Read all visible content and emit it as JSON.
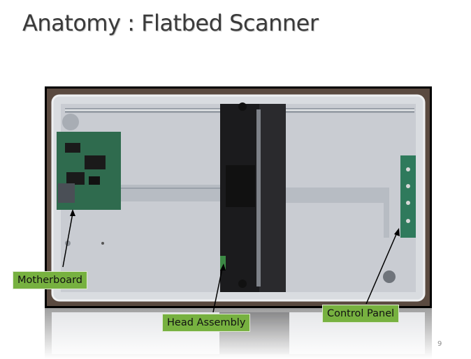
{
  "slide": {
    "title": "Anatomy : Flatbed Scanner",
    "page_number": "9"
  },
  "callouts": {
    "motherboard": "Motherboard",
    "head_assembly": "Head Assembly",
    "control_panel": "Control Panel"
  },
  "colors": {
    "callout_fill": "#77b140",
    "title_text": "#3a3a3a",
    "photo_border": "#000000"
  }
}
